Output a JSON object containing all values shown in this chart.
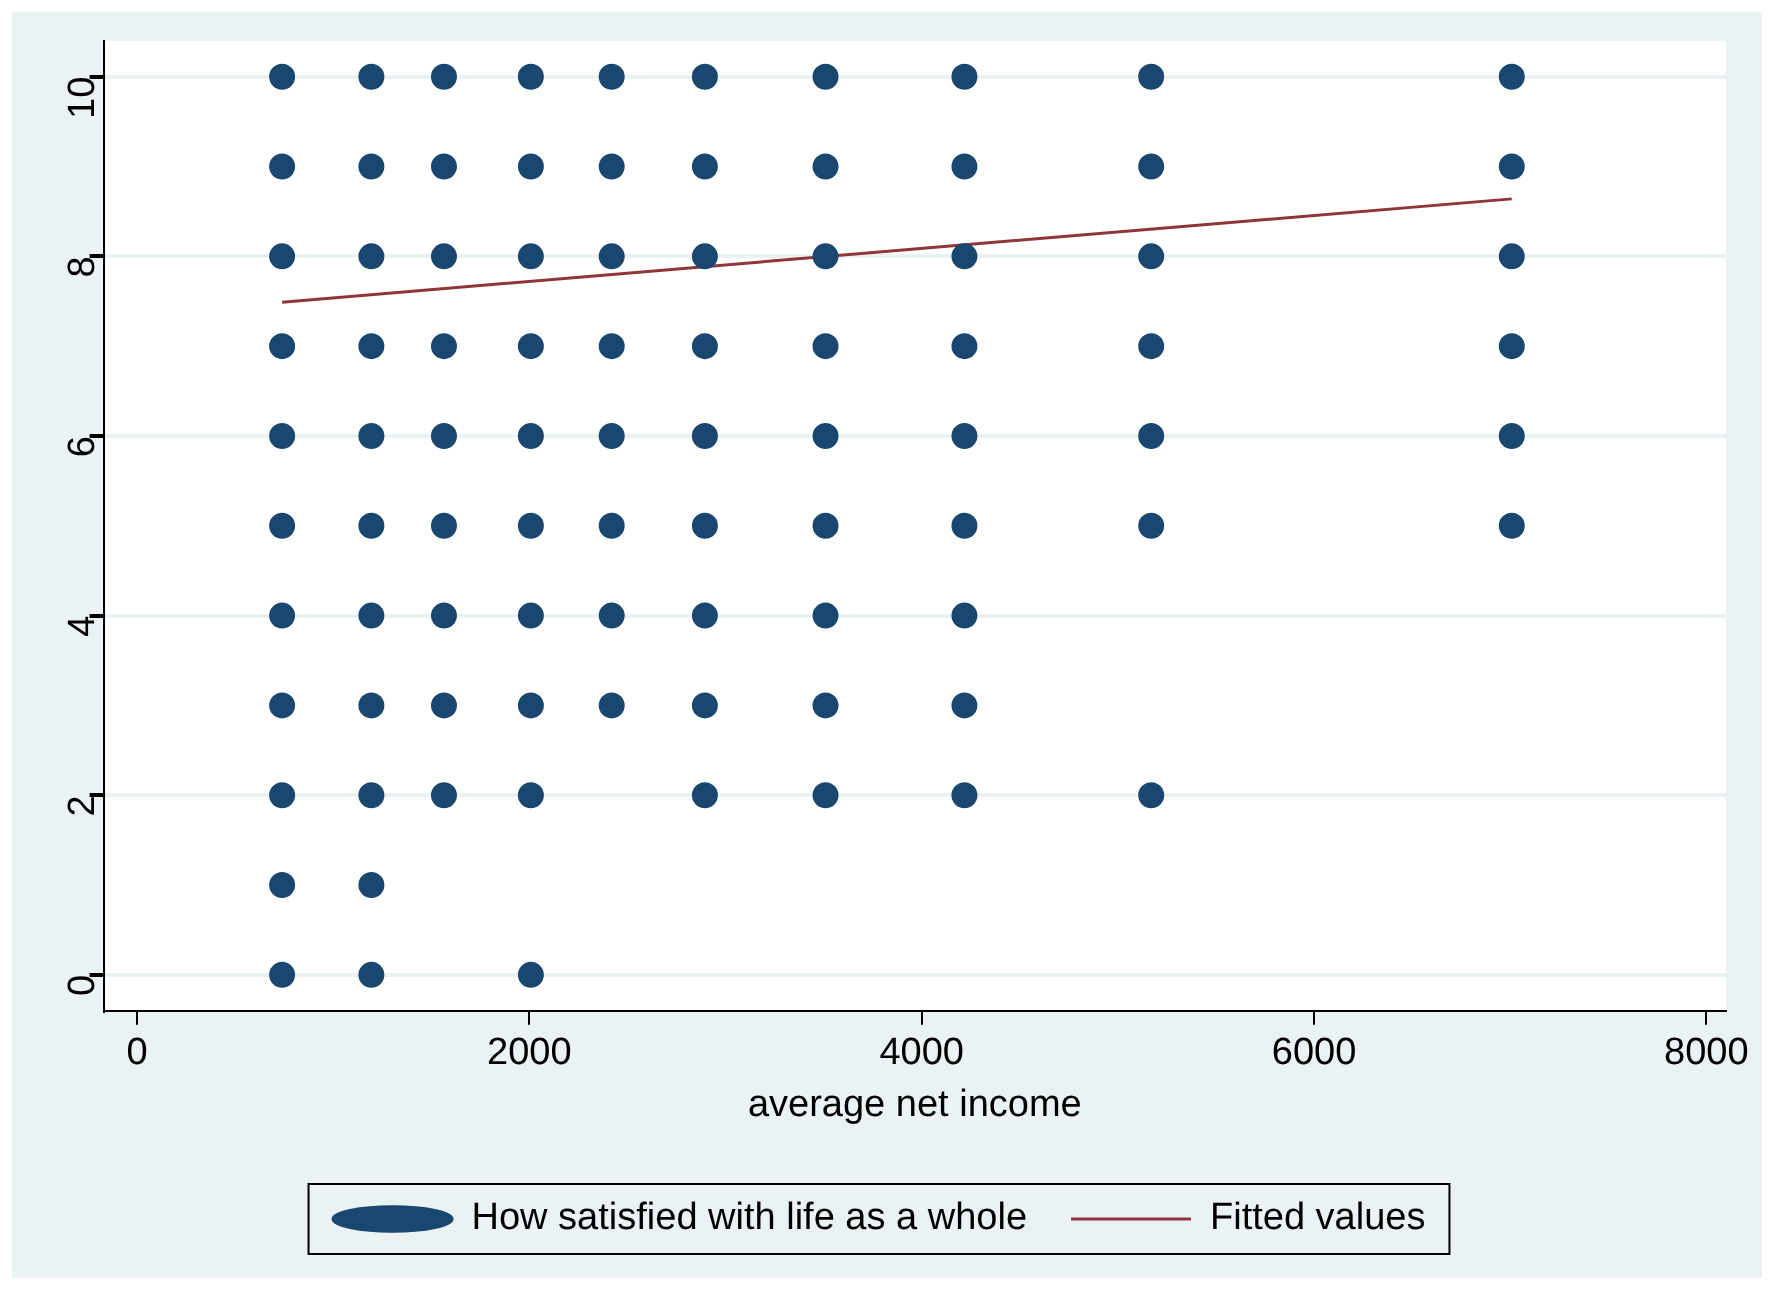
{
  "chart_data": {
    "type": "scatter",
    "xlabel": "average net income",
    "xlim": [
      -170,
      8100
    ],
    "xticks": [
      0,
      2000,
      4000,
      6000,
      8000
    ],
    "ylim": [
      -0.4,
      10.4
    ],
    "yticks": [
      0,
      2,
      4,
      6,
      8,
      10
    ],
    "grid": "y",
    "legend": "bottom",
    "series": [
      {
        "name": "How satisfied with life as a whole",
        "type": "scatter",
        "marker": "circle",
        "color": "#1a476f",
        "x": [
          740,
          740,
          740,
          740,
          740,
          740,
          740,
          740,
          740,
          740,
          740,
          1195,
          1195,
          1195,
          1195,
          1195,
          1195,
          1195,
          1195,
          1195,
          1195,
          1195,
          1565,
          1565,
          1565,
          1565,
          1565,
          1565,
          1565,
          1565,
          1565,
          2008,
          2008,
          2008,
          2008,
          2008,
          2008,
          2008,
          2008,
          2008,
          2008,
          2420,
          2420,
          2420,
          2420,
          2420,
          2420,
          2420,
          2420,
          2895,
          2895,
          2895,
          2895,
          2895,
          2895,
          2895,
          2895,
          2895,
          3510,
          3510,
          3510,
          3510,
          3510,
          3510,
          3510,
          3510,
          3510,
          4218,
          4218,
          4218,
          4218,
          4218,
          4218,
          4218,
          4218,
          4218,
          5170,
          5170,
          5170,
          5170,
          5170,
          5170,
          5170,
          7008,
          7008,
          7008,
          7008,
          7008,
          7008
        ],
        "values": [
          0,
          1,
          2,
          3,
          4,
          5,
          6,
          7,
          8,
          9,
          10,
          0,
          1,
          2,
          3,
          4,
          5,
          6,
          7,
          8,
          9,
          10,
          2,
          3,
          4,
          5,
          6,
          7,
          8,
          9,
          10,
          0,
          2,
          3,
          4,
          5,
          6,
          7,
          8,
          9,
          10,
          3,
          4,
          5,
          6,
          7,
          8,
          9,
          10,
          2,
          3,
          4,
          5,
          6,
          7,
          8,
          9,
          10,
          2,
          3,
          4,
          5,
          6,
          7,
          8,
          9,
          10,
          2,
          3,
          4,
          5,
          6,
          7,
          8,
          9,
          10,
          2,
          5,
          6,
          7,
          8,
          9,
          10,
          5,
          6,
          7,
          8,
          9,
          10
        ]
      },
      {
        "name": "Fitted values",
        "type": "line",
        "marker": "none",
        "color": "#90353b",
        "x": [
          740,
          7008
        ],
        "values": [
          7.49,
          8.64
        ]
      }
    ]
  }
}
